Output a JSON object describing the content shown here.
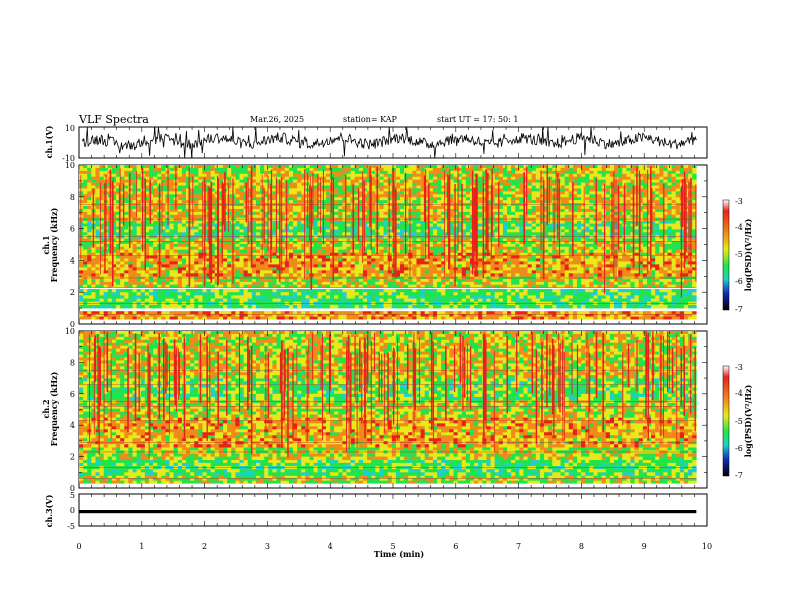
{
  "header": {
    "title": "VLF Spectra",
    "date": "Mar.26, 2025",
    "station": "station= KAP",
    "start_ut": "start  UT  =   17: 50: 1"
  },
  "chart_data": [
    {
      "type": "line",
      "panel": "ch1-waveform",
      "ylabel": "ch.1(V)",
      "ylim": [
        -10,
        10
      ],
      "yticks": [
        "10",
        "-10"
      ],
      "xlim": [
        0,
        10
      ],
      "series_color": "#000000",
      "values_per_minute_mean": [
        0,
        1,
        1,
        1,
        1,
        1,
        1,
        1,
        1,
        1
      ]
    },
    {
      "type": "heatmap",
      "panel": "ch1-spectrogram",
      "ylabel": "ch.1\nFrequency (kHz)",
      "ylim": [
        0,
        10
      ],
      "yticks": [
        "0",
        "2",
        "4",
        "6",
        "8",
        "10"
      ],
      "xlim": [
        0,
        9.83
      ],
      "color_scale_label": "log(PSD)(V²/Hz)",
      "color_ticks": [
        "-3",
        "-4",
        "-5",
        "-6",
        "-7"
      ],
      "color_range": [
        -7,
        -3
      ],
      "emission_bands_khz": [
        {
          "from": 0.3,
          "to": 0.8,
          "level": -4.0
        },
        {
          "from": 1.0,
          "to": 2.2,
          "level": -5.0
        },
        {
          "from": 2.3,
          "to": 3.0,
          "level": -4.5
        },
        {
          "from": 3.0,
          "to": 4.5,
          "level": -4.1
        },
        {
          "from": 4.5,
          "to": 5.4,
          "level": -4.5
        },
        {
          "from": 5.4,
          "to": 6.5,
          "level": -5.0
        },
        {
          "from": 6.5,
          "to": 10.0,
          "level": -4.4
        }
      ]
    },
    {
      "type": "heatmap",
      "panel": "ch2-spectrogram",
      "ylabel": "ch.2\nFrequency (kHz)",
      "ylim": [
        0,
        10
      ],
      "yticks": [
        "0",
        "2",
        "4",
        "6",
        "8",
        "10"
      ],
      "xlim": [
        0,
        9.83
      ],
      "color_scale_label": "log(PSD)(V²/Hz)",
      "color_ticks": [
        "-3",
        "-4",
        "-5",
        "-6",
        "-7"
      ],
      "color_range": [
        -7,
        -3
      ],
      "emission_bands_khz": [
        {
          "from": 0.3,
          "to": 0.8,
          "level": -4.6
        },
        {
          "from": 0.8,
          "to": 1.8,
          "level": -5.0
        },
        {
          "from": 1.8,
          "to": 2.6,
          "level": -4.5
        },
        {
          "from": 2.6,
          "to": 4.5,
          "level": -4.1
        },
        {
          "from": 4.5,
          "to": 5.6,
          "level": -4.5
        },
        {
          "from": 5.6,
          "to": 7.0,
          "level": -4.9
        },
        {
          "from": 7.0,
          "to": 10.0,
          "level": -4.4
        }
      ]
    },
    {
      "type": "line",
      "panel": "ch3-waveform",
      "ylabel": "ch.3(V)",
      "ylim": [
        -5,
        5
      ],
      "yticks": [
        "5",
        "0",
        "-5"
      ],
      "xlim": [
        0,
        9.83
      ],
      "values": [
        -0.5,
        -0.5
      ],
      "band_width_v": 1.0,
      "xlabel": "Time  (min)",
      "xticks": [
        "0",
        "1",
        "2",
        "3",
        "4",
        "5",
        "6",
        "7",
        "8",
        "9",
        "10"
      ]
    }
  ],
  "colors": {
    "red": "#e8221b",
    "orange": "#f08a1a",
    "yellow": "#e8e91b",
    "green": "#22e34d",
    "cyan": "#1fd0c8",
    "blue": "#1428b8",
    "black": "#000000"
  }
}
